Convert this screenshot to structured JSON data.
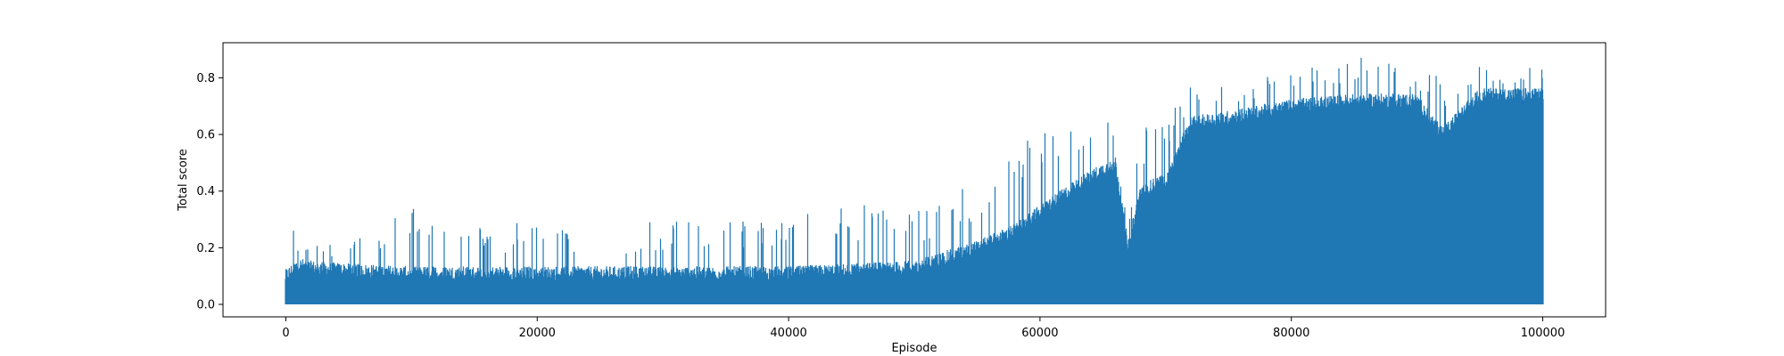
{
  "chart_data": {
    "type": "line",
    "title": "",
    "xlabel": "Episode",
    "ylabel": "Total score",
    "xlim": [
      -5000,
      105000
    ],
    "ylim": [
      -0.044,
      0.924
    ],
    "xticks": [
      0,
      20000,
      40000,
      60000,
      80000,
      100000
    ],
    "xtick_labels": [
      "0",
      "20000",
      "40000",
      "60000",
      "80000",
      "100000"
    ],
    "yticks": [
      0.0,
      0.2,
      0.4,
      0.6,
      0.8
    ],
    "ytick_labels": [
      "0.0",
      "0.2",
      "0.4",
      "0.6",
      "0.8"
    ],
    "grid": false,
    "legend": "none",
    "series": [
      {
        "color": "#1f77b4",
        "x": [
          0,
          1000,
          2000,
          5000,
          10000,
          15000,
          20000,
          25000,
          30000,
          35000,
          40000,
          45000,
          50000,
          55000,
          58000,
          61000,
          64000,
          66000,
          67000,
          68000,
          70000,
          72000,
          75000,
          80000,
          85000,
          90000,
          92000,
          95000,
          100000
        ],
        "y_min": [
          0.0,
          0.0,
          0.0,
          0.0,
          0.0,
          0.0,
          0.0,
          0.0,
          0.0,
          0.0,
          0.0,
          0.0,
          0.0,
          0.0,
          0.0,
          0.0,
          0.0,
          0.0,
          0.0,
          0.0,
          0.0,
          0.0,
          0.0,
          0.0,
          0.0,
          0.0,
          0.0,
          0.0,
          0.0
        ],
        "y_base": [
          0.1,
          0.14,
          0.13,
          0.12,
          0.11,
          0.11,
          0.11,
          0.11,
          0.11,
          0.11,
          0.11,
          0.12,
          0.13,
          0.2,
          0.26,
          0.36,
          0.45,
          0.5,
          0.2,
          0.4,
          0.44,
          0.64,
          0.66,
          0.7,
          0.72,
          0.72,
          0.6,
          0.74,
          0.74
        ],
        "y_peak": [
          0.32,
          0.26,
          0.24,
          0.23,
          0.35,
          0.27,
          0.3,
          0.25,
          0.31,
          0.33,
          0.3,
          0.37,
          0.33,
          0.45,
          0.55,
          0.64,
          0.69,
          0.65,
          0.26,
          0.63,
          0.65,
          0.78,
          0.77,
          0.83,
          0.88,
          0.83,
          0.8,
          0.84,
          0.84
        ]
      }
    ]
  }
}
